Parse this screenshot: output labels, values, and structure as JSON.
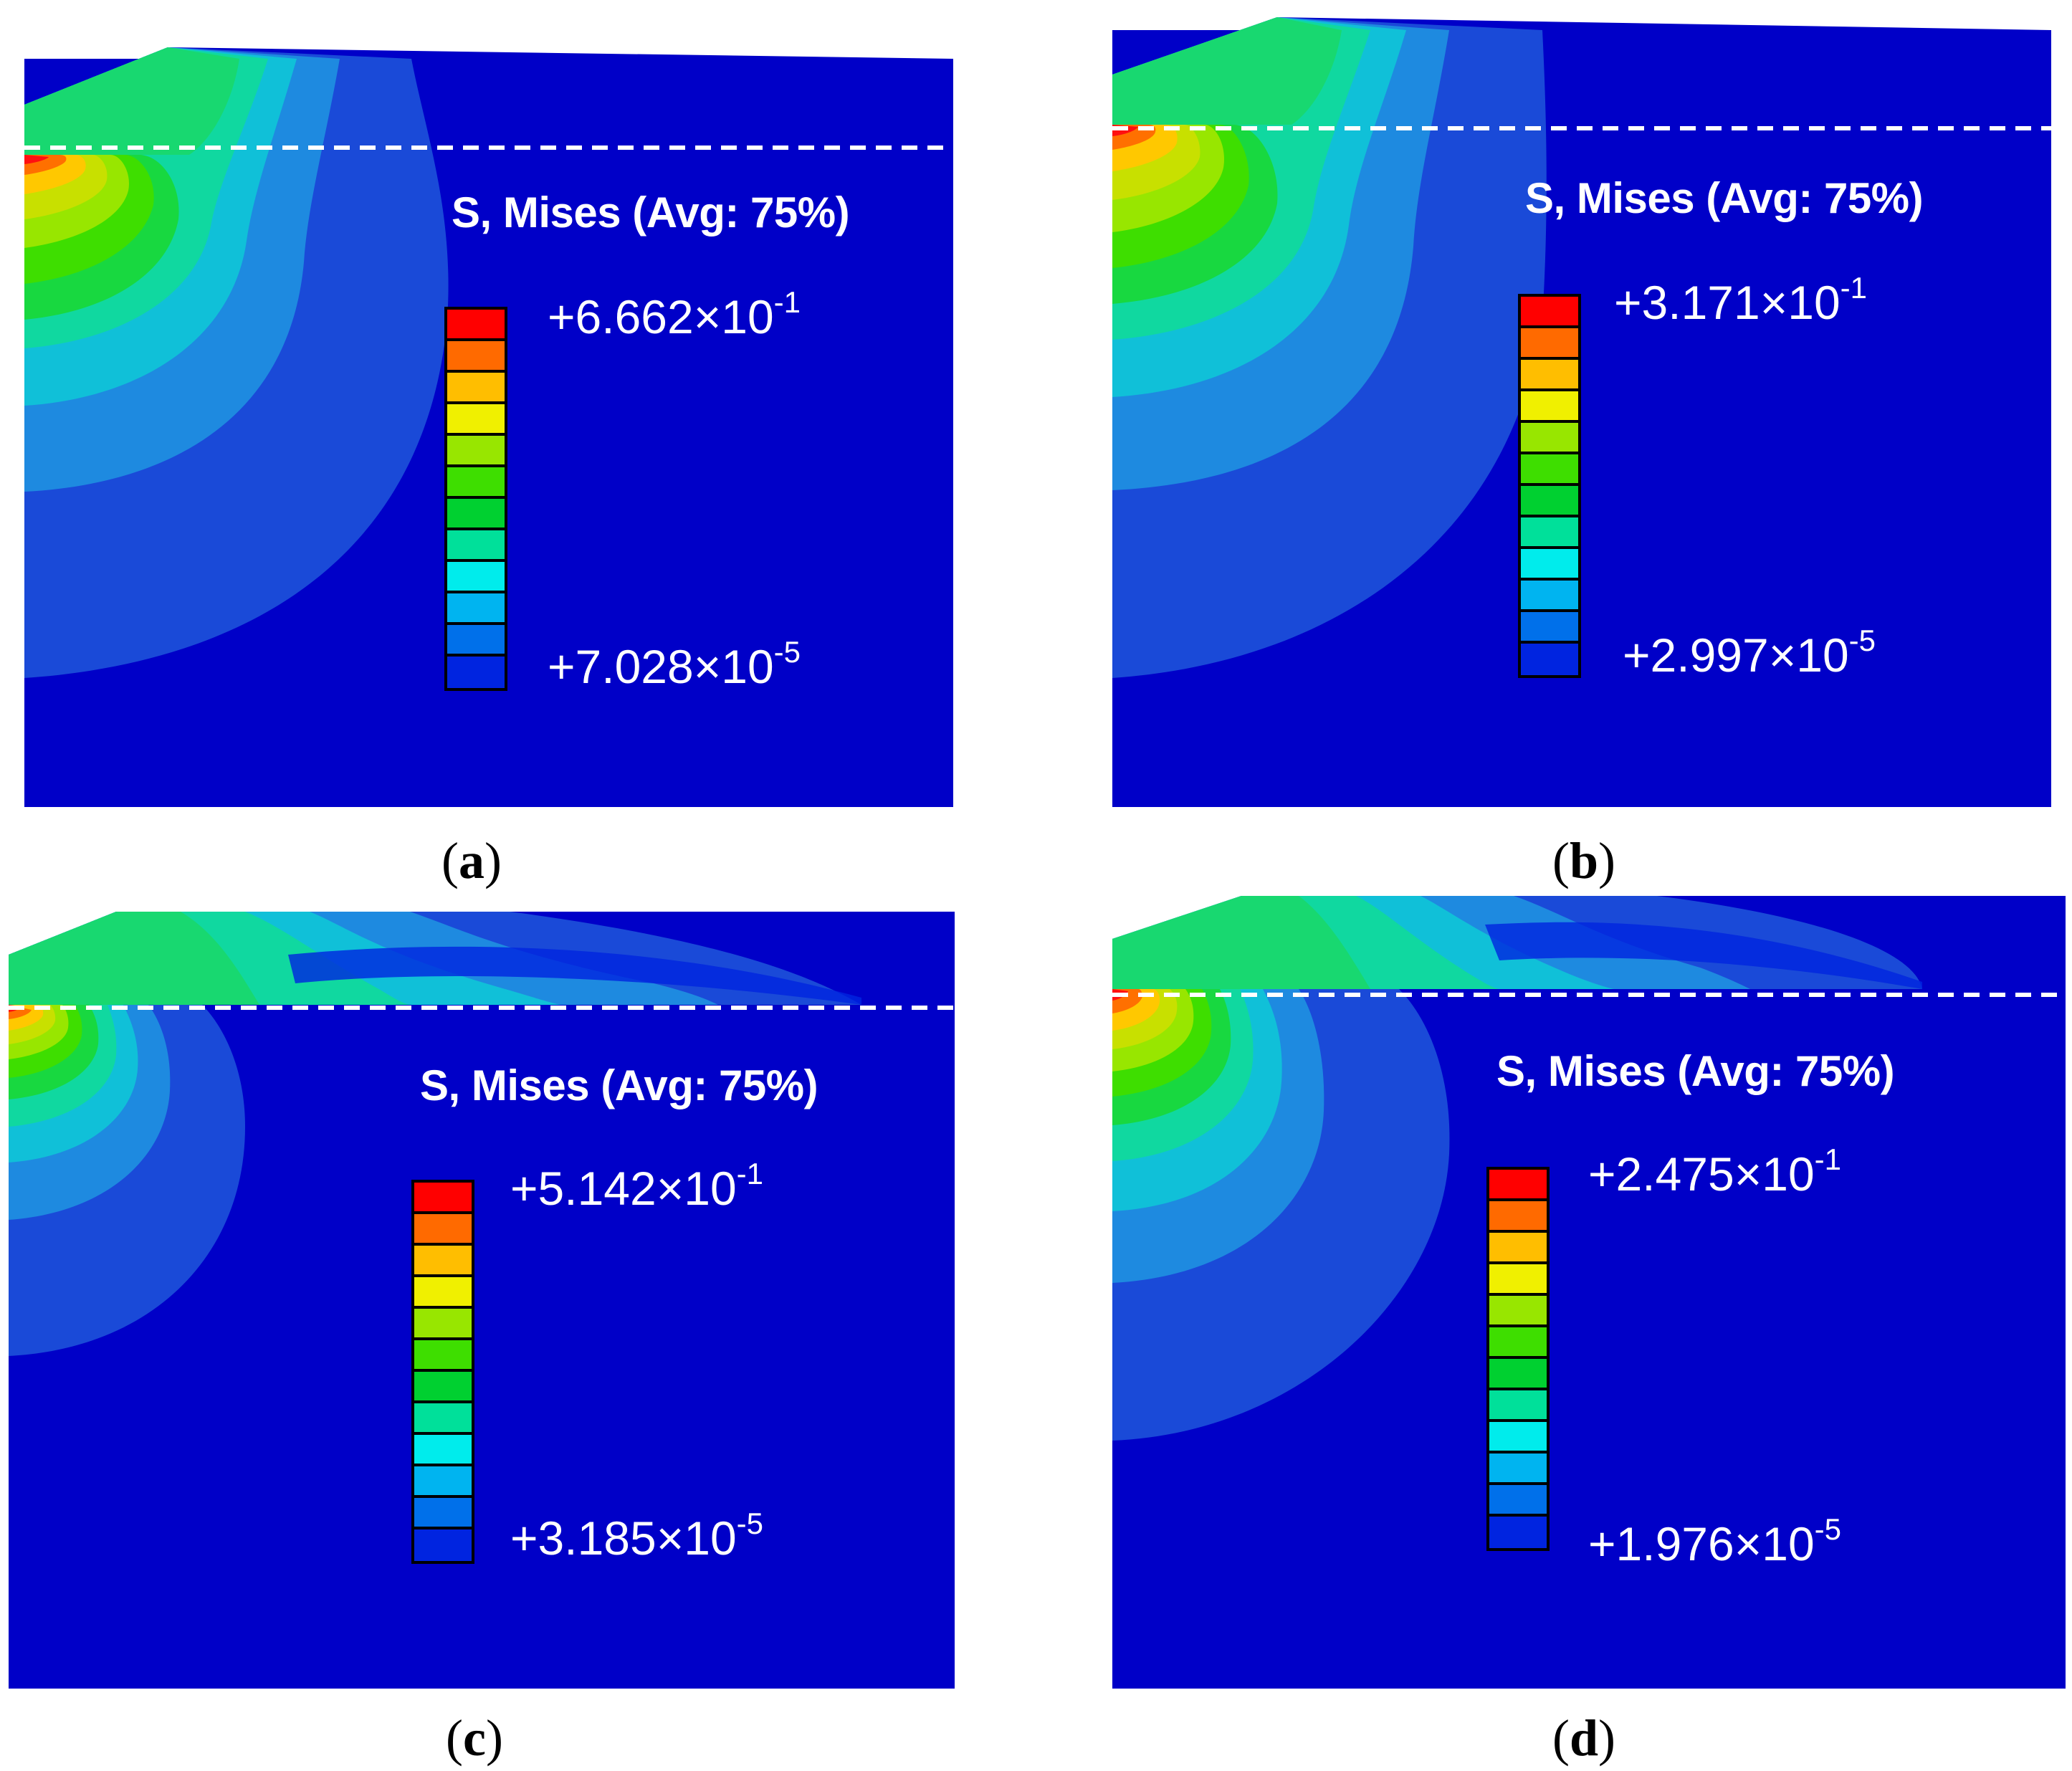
{
  "figure": {
    "colormap": [
      "#ff0000",
      "#ff6a00",
      "#ffbe00",
      "#f0f000",
      "#98e600",
      "#3ede00",
      "#00d030",
      "#00e09a",
      "#00ecec",
      "#00b4f0",
      "#0070ea",
      "#0024e0"
    ],
    "colors": {
      "background_field": "#0000c8",
      "contour_1": "#1a4ad8",
      "contour_2": "#1e8ae0",
      "contour_3": "#10c0d8",
      "contour_4": "#10d8a0",
      "contour_5": "#18d840",
      "contour_6": "#78dc10",
      "contour_7": "#c8e000",
      "contour_8": "#ffc800",
      "contour_9": "#ff7000",
      "contour_10": "#ff1010",
      "reference_line": "#ffffff"
    }
  },
  "panels": [
    {
      "id": "a",
      "caption_label": "a",
      "legend_title": "S, Mises (Avg: 75%)",
      "max_mantissa": "+6.662×10",
      "max_exponent": "-1",
      "min_mantissa": "+7.028×10",
      "min_exponent": "-5"
    },
    {
      "id": "b",
      "caption_label": "b",
      "legend_title": "S, Mises (Avg: 75%)",
      "max_mantissa": "+3.171×10",
      "max_exponent": "-1",
      "min_mantissa": "+2.997×10",
      "min_exponent": "-5"
    },
    {
      "id": "c",
      "caption_label": "c",
      "legend_title": "S, Mises (Avg: 75%)",
      "max_mantissa": "+5.142×10",
      "max_exponent": "-1",
      "min_mantissa": "+3.185×10",
      "min_exponent": "-5"
    },
    {
      "id": "d",
      "caption_label": "d",
      "legend_title": "S, Mises (Avg: 75%)",
      "max_mantissa": "+2.475×10",
      "max_exponent": "-1",
      "min_mantissa": "+1.976×10",
      "min_exponent": "-5"
    }
  ]
}
